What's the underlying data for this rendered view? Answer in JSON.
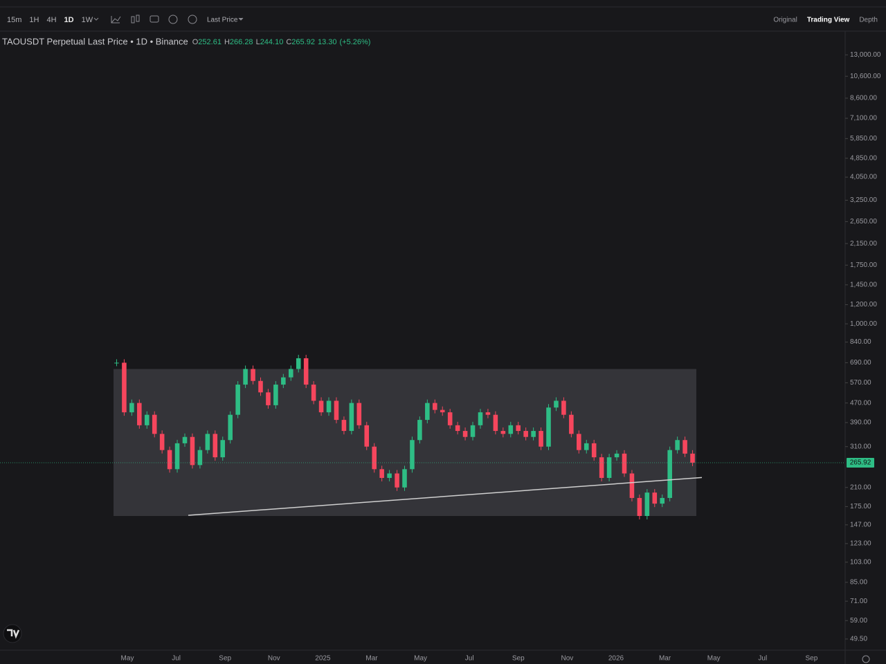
{
  "toolbar": {
    "intervals": [
      "15m",
      "1H",
      "4H",
      "1D",
      "1W"
    ],
    "active": "1D",
    "price_mode": "Last Price",
    "views": [
      "Original",
      "Trading View",
      "Depth"
    ],
    "active_view": "Trading View"
  },
  "legend": {
    "symbol": "TAOUSDT Perpetual Last Price • 1D • Binance",
    "ohlc": [
      {
        "label": "O",
        "value": "252.61"
      },
      {
        "label": "H",
        "value": "266.28"
      },
      {
        "label": "L",
        "value": "244.10"
      },
      {
        "label": "C",
        "value": "265.92"
      }
    ],
    "change": "13.30",
    "change_pct": "(+5.26%)"
  },
  "chart_data": {
    "type": "candlestick",
    "log_scale": true,
    "up_color": "#2ebd85",
    "down_color": "#f6465d",
    "values": [
      690,
      430,
      470,
      380,
      420,
      350,
      300,
      250,
      320,
      340,
      260,
      300,
      350,
      280,
      330,
      420,
      560,
      650,
      580,
      520,
      460,
      560,
      600,
      650,
      720,
      560,
      480,
      430,
      480,
      400,
      360,
      470,
      380,
      310,
      250,
      230,
      240,
      210,
      250,
      330,
      400,
      470,
      440,
      430,
      380,
      360,
      340,
      380,
      430,
      420,
      360,
      350,
      380,
      360,
      340,
      360,
      310,
      450,
      480,
      420,
      350,
      300,
      320,
      280,
      230,
      280,
      290,
      240,
      190,
      160,
      200,
      180,
      190,
      300,
      330,
      290,
      265.92
    ],
    "ylim": [
      44.5,
      16300
    ],
    "yticks": [
      {
        "value": 13000,
        "label": "13,000.00"
      },
      {
        "value": 10600,
        "label": "10,600.00"
      },
      {
        "value": 8600,
        "label": "8,600.00"
      },
      {
        "value": 7100,
        "label": "7,100.00"
      },
      {
        "value": 5850,
        "label": "5,850.00"
      },
      {
        "value": 4850,
        "label": "4,850.00"
      },
      {
        "value": 4050,
        "label": "4,050.00"
      },
      {
        "value": 3250,
        "label": "3,250.00"
      },
      {
        "value": 2650,
        "label": "2,650.00"
      },
      {
        "value": 2150,
        "label": "2,150.00"
      },
      {
        "value": 1750,
        "label": "1,750.00"
      },
      {
        "value": 1450,
        "label": "1,450.00"
      },
      {
        "value": 1200,
        "label": "1,200.00"
      },
      {
        "value": 1000,
        "label": "1,000.00"
      },
      {
        "value": 840,
        "label": "840.00"
      },
      {
        "value": 690,
        "label": "690.00"
      },
      {
        "value": 570,
        "label": "570.00"
      },
      {
        "value": 470,
        "label": "470.00"
      },
      {
        "value": 390,
        "label": "390.00"
      },
      {
        "value": 310,
        "label": "310.00"
      },
      {
        "value": 210,
        "label": "210.00"
      },
      {
        "value": 175,
        "label": "175.00"
      },
      {
        "value": 147,
        "label": "147.00"
      },
      {
        "value": 123,
        "label": "123.00"
      },
      {
        "value": 103,
        "label": "103.00"
      },
      {
        "value": 85,
        "label": "85.00"
      },
      {
        "value": 71,
        "label": "71.00"
      },
      {
        "value": 59,
        "label": "59.00"
      },
      {
        "value": 49.5,
        "label": "49.50"
      }
    ],
    "xticks": [
      "May",
      "Jul",
      "Sep",
      "Nov",
      "2025",
      "Mar",
      "May",
      "Jul",
      "Sep",
      "Nov",
      "2026",
      "Mar",
      "May",
      "Jul",
      "Sep"
    ],
    "last_price": {
      "value": 265.92,
      "label": "265.92"
    },
    "range_box": [
      650,
      160
    ],
    "trendline": [
      161,
      231
    ]
  }
}
